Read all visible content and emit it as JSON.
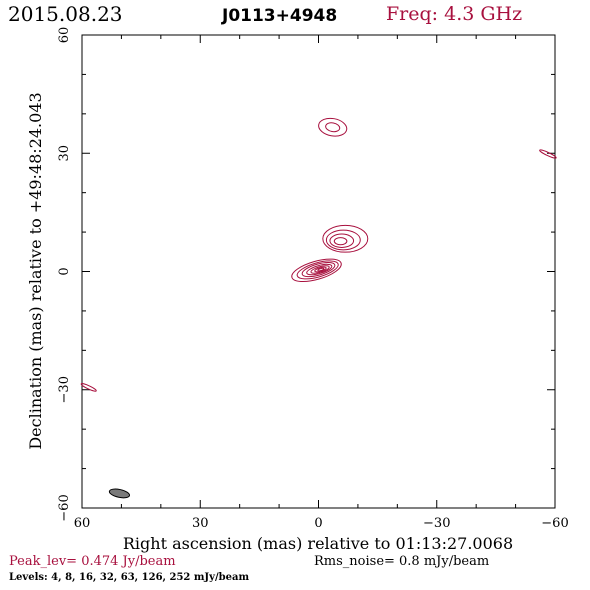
{
  "header": {
    "date": "2015.08.23",
    "source": "J0113+4948",
    "freq": "Freq: 4.3 GHz"
  },
  "footer": {
    "peak": "Peak_lev=  0.474 Jy/beam",
    "rms": "Rms_noise=   0.8 mJy/beam",
    "levels": "Levels:   4,   8,  16,  32,  63, 126, 252 mJy/beam"
  },
  "colors": {
    "contour": "#a8103e",
    "beam": "#7a7a7a",
    "peak_text": "#a8103e"
  },
  "chart_data": {
    "type": "contour",
    "xlabel": "Right ascension (mas) relative to 01:13:27.0068",
    "ylabel": "Declination (mas) relative to +49:48:24.043",
    "xlim": [
      60,
      -60
    ],
    "ylim": [
      -60,
      60
    ],
    "x_ticks": [
      60,
      30,
      0,
      -30,
      -60
    ],
    "y_ticks": [
      -60,
      -30,
      0,
      30,
      60
    ],
    "x_tick_labels": [
      "60",
      "30",
      "0",
      "−30",
      "−60"
    ],
    "y_tick_labels": [
      "−60",
      "−30",
      "0",
      "30",
      "60"
    ],
    "contour_levels_mJy": [
      4,
      8,
      16,
      32,
      63,
      126,
      252
    ],
    "components": [
      {
        "name": "core",
        "contours": [
          {
            "cx": 0.5,
            "cy": 0.3,
            "rx": 6.5,
            "ry": 2.3,
            "angle": 16
          },
          {
            "cx": 0.2,
            "cy": 0.4,
            "rx": 5.4,
            "ry": 1.8,
            "angle": 16
          },
          {
            "cx": 0.0,
            "cy": 0.5,
            "rx": 4.3,
            "ry": 1.4,
            "angle": 16
          },
          {
            "cx": -0.2,
            "cy": 0.5,
            "rx": 3.3,
            "ry": 1.0,
            "angle": 16
          },
          {
            "cx": -0.4,
            "cy": 0.5,
            "rx": 2.4,
            "ry": 0.7,
            "angle": 16
          },
          {
            "cx": -0.5,
            "cy": 0.5,
            "rx": 1.5,
            "ry": 0.45,
            "angle": 16
          },
          {
            "cx": -0.6,
            "cy": 0.5,
            "rx": 0.8,
            "ry": 0.25,
            "angle": 16
          }
        ]
      },
      {
        "name": "inner-jet",
        "contours": [
          {
            "cx": -6.8,
            "cy": 8.3,
            "rx": 5.7,
            "ry": 3.4,
            "angle": 0
          },
          {
            "cx": -6.3,
            "cy": 8.0,
            "rx": 4.3,
            "ry": 2.5,
            "angle": 0
          },
          {
            "cx": -5.9,
            "cy": 7.8,
            "rx": 3.0,
            "ry": 1.7,
            "angle": 0
          },
          {
            "cx": -5.6,
            "cy": 7.7,
            "rx": 1.6,
            "ry": 0.9,
            "angle": 0
          }
        ]
      },
      {
        "name": "outer-jet",
        "contours": [
          {
            "cx": -3.6,
            "cy": 36.6,
            "rx": 3.6,
            "ry": 2.2,
            "angle": -10
          },
          {
            "cx": -3.6,
            "cy": 36.6,
            "rx": 1.8,
            "ry": 1.1,
            "angle": -10
          }
        ]
      },
      {
        "name": "edge-spot-right",
        "contours": [
          {
            "cx": -58.2,
            "cy": 29.8,
            "rx": 2.3,
            "ry": 0.4,
            "angle": -25
          }
        ]
      },
      {
        "name": "edge-spot-left",
        "contours": [
          {
            "cx": 58.3,
            "cy": -29.4,
            "rx": 2.1,
            "ry": 0.4,
            "angle": -25
          }
        ]
      }
    ],
    "beam": {
      "cx": 50.5,
      "cy": -56.3,
      "rx": 2.6,
      "ry": 1.0,
      "angle": -12
    }
  }
}
